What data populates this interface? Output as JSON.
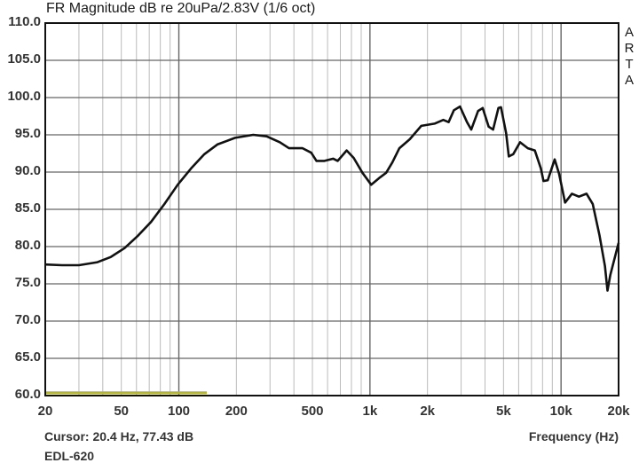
{
  "header": {
    "title": "FR Magnitude dB re 20uPa/2.83V (1/6 oct)",
    "brand": [
      "A",
      "R",
      "T",
      "A"
    ]
  },
  "footer": {
    "cursor": "Cursor: 20.4 Hz, 77.43 dB",
    "model": "EDL-620",
    "xaxis_title": "Frequency (Hz)"
  },
  "colors": {
    "curve": "#111111",
    "grid_major": "#666666",
    "grid_minor": "#bbbbbb",
    "frame": "#111111",
    "marker": "#b5b52a"
  },
  "chart_data": {
    "type": "line",
    "title": "FR Magnitude dB re 20uPa/2.83V (1/6 oct)",
    "xlabel": "Frequency (Hz)",
    "ylabel": "dB",
    "xscale": "log",
    "xlim": [
      20,
      20000
    ],
    "ylim": [
      60,
      110
    ],
    "grid": true,
    "x_tick_labels": [
      "20",
      "50",
      "100",
      "200",
      "500",
      "1k",
      "2k",
      "5k",
      "10k",
      "20k"
    ],
    "x_ticks": [
      20,
      50,
      100,
      200,
      500,
      1000,
      2000,
      5000,
      10000,
      20000
    ],
    "y_tick_labels": [
      "110.0",
      "105.0",
      "100.0",
      "95.0",
      "90.0",
      "85.0",
      "80.0",
      "75.0",
      "70.0",
      "65.0",
      "60.0"
    ],
    "y_ticks": [
      110,
      105,
      100,
      95,
      90,
      85,
      80,
      75,
      70,
      65,
      60
    ],
    "legend": [],
    "annotations": [
      "Cursor: 20.4 Hz, 77.43 dB",
      "EDL-620",
      "ARTA"
    ],
    "series": [
      {
        "name": "EDL-620",
        "x": [
          20,
          24.5,
          30,
          37.5,
          44,
          52,
          60.8,
          71.5,
          84,
          98.6,
          116,
          136,
          159,
          197,
          245,
          288,
          338,
          377,
          444,
          493,
          525,
          578,
          643,
          678,
          755,
          822,
          914,
          1016,
          1130,
          1216,
          1310,
          1425,
          1616,
          1856,
          2177,
          2420,
          2580,
          2750,
          2960,
          3220,
          3390,
          3680,
          3890,
          4180,
          4410,
          4700,
          4850,
          5160,
          5330,
          5620,
          6100,
          6700,
          7290,
          7840,
          8090,
          8520,
          9260,
          9760,
          10500,
          11400,
          12400,
          13600,
          14650,
          15900,
          16960,
          17500,
          18100,
          20000
        ],
        "values": [
          77.6,
          77.5,
          77.5,
          77.9,
          78.6,
          79.8,
          81.4,
          83.3,
          85.7,
          88.3,
          90.5,
          92.4,
          93.7,
          94.6,
          95.0,
          94.8,
          94.0,
          93.2,
          93.2,
          92.6,
          91.5,
          91.5,
          91.8,
          91.5,
          92.9,
          91.9,
          89.9,
          88.3,
          89.3,
          89.9,
          91.3,
          93.2,
          94.4,
          96.2,
          96.5,
          97.0,
          96.7,
          98.3,
          98.8,
          96.7,
          95.7,
          98.2,
          98.6,
          96.1,
          95.7,
          98.6,
          98.7,
          95.2,
          92.1,
          92.4,
          94.0,
          93.2,
          92.9,
          90.5,
          88.8,
          88.9,
          91.7,
          89.8,
          85.9,
          87.1,
          86.7,
          87.1,
          85.7,
          81.5,
          77.4,
          74.1,
          76.2,
          80.5
        ]
      }
    ],
    "marker_line": {
      "x": [
        20,
        140
      ],
      "y": 60.5,
      "color": "#b5b52a"
    }
  }
}
